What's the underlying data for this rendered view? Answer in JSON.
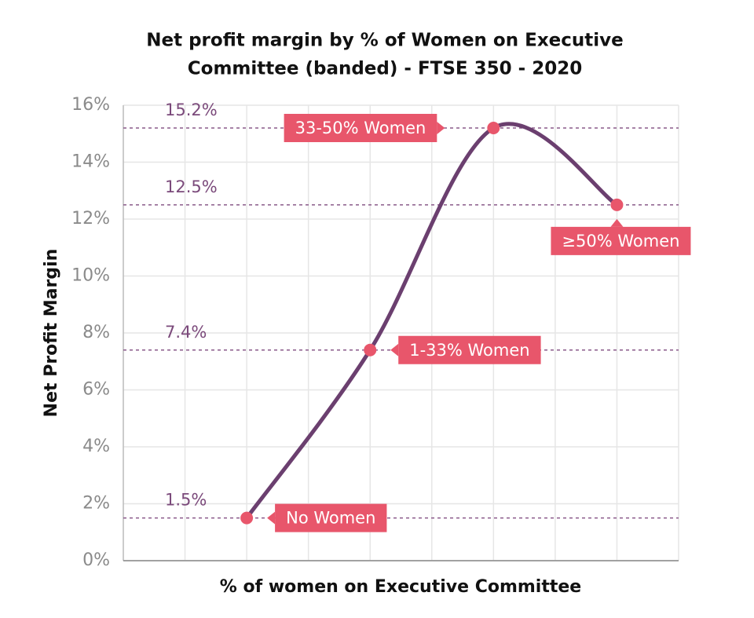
{
  "chart_data": {
    "type": "line",
    "title": [
      "Net profit margin by % of Women on Executive",
      "Committee (banded) - FTSE 350 - 2020"
    ],
    "x_label": "% of women on Executive Committee",
    "y_label": "Net Profit Margin",
    "categories": [
      "No Women",
      "1-33% Women",
      "33-50% Women",
      "≥50% Women"
    ],
    "values": [
      1.5,
      7.4,
      15.2,
      12.5
    ],
    "value_labels": [
      "1.5%",
      "7.4%",
      "15.2%",
      "12.5%"
    ],
    "line_color": "#6b3f6f",
    "marker_color": "#e8566b",
    "callout_color": "#e8566b",
    "reference_color": "#8a5a8a",
    "ylim": [
      0,
      16
    ],
    "yticks": [
      {
        "value": 0,
        "label": "0%"
      },
      {
        "value": 2,
        "label": "2%"
      },
      {
        "value": 4,
        "label": "4%"
      },
      {
        "value": 6,
        "label": "6%"
      },
      {
        "value": 8,
        "label": "8%"
      },
      {
        "value": 10,
        "label": "10%"
      },
      {
        "value": 12,
        "label": "12%"
      },
      {
        "value": 14,
        "label": "14%"
      },
      {
        "value": 16,
        "label": "16%"
      }
    ],
    "grid": true
  }
}
